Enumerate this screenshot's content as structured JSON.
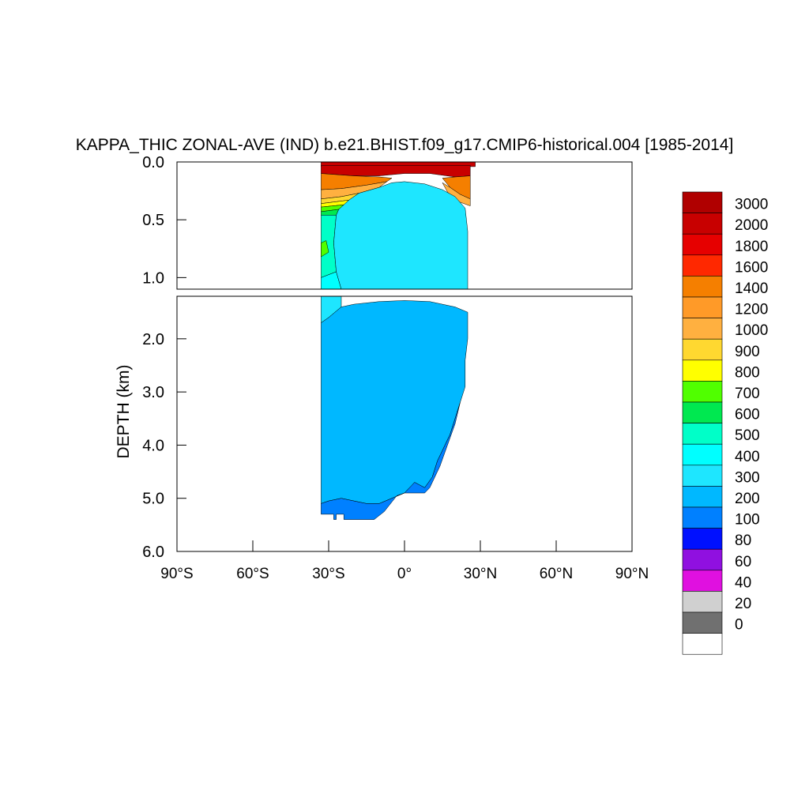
{
  "chart_data": {
    "type": "heatmap",
    "title": "KAPPA_THIC ZONAL-AVE (IND) b.e21.BHIST.f09_g17.CMIP6-historical.004 [1985-2014]",
    "ylabel": "DEPTH (km)",
    "xlabel": "",
    "x_ticks": [
      {
        "value": -90,
        "label": "90°S"
      },
      {
        "value": -60,
        "label": "60°S"
      },
      {
        "value": -30,
        "label": "30°S"
      },
      {
        "value": 0,
        "label": "0°"
      },
      {
        "value": 30,
        "label": "30°N"
      },
      {
        "value": 60,
        "label": "60°N"
      },
      {
        "value": 90,
        "label": "90°N"
      }
    ],
    "xlim": [
      -90,
      90
    ],
    "upper_panel": {
      "ylim": [
        0.0,
        1.1
      ],
      "y_ticks": [
        {
          "value": 0.0,
          "label": "0.0"
        },
        {
          "value": 0.5,
          "label": "0.5"
        },
        {
          "value": 1.0,
          "label": "1.0"
        }
      ]
    },
    "lower_panel": {
      "ylim": [
        1.2,
        6.0
      ],
      "y_ticks": [
        {
          "value": 2.0,
          "label": "2.0"
        },
        {
          "value": 3.0,
          "label": "3.0"
        },
        {
          "value": 4.0,
          "label": "4.0"
        },
        {
          "value": 5.0,
          "label": "5.0"
        },
        {
          "value": 6.0,
          "label": "6.0"
        }
      ]
    },
    "colorbar": {
      "levels": [
        "3000",
        "2000",
        "1800",
        "1600",
        "1400",
        "1200",
        "1000",
        "900",
        "800",
        "700",
        "600",
        "500",
        "400",
        "300",
        "200",
        "100",
        "80",
        "60",
        "40",
        "20",
        "0"
      ],
      "colors": [
        "#b00000",
        "#c80000",
        "#e60000",
        "#ff2800",
        "#f57f00",
        "#ff9a28",
        "#ffb040",
        "#ffd830",
        "#ffff00",
        "#50ff00",
        "#00e850",
        "#00ffc8",
        "#00ffff",
        "#1ee6ff",
        "#00b8ff",
        "#0080ff",
        "#0010ff",
        "#9010e0",
        "#e010e0",
        "#d0d0d0",
        "#707070",
        "#ffffff"
      ]
    },
    "domain": {
      "lat_min": -33,
      "lat_max": 26
    },
    "regions": [
      {
        "level": 3000,
        "color": "#c80000",
        "poly": [
          [
            -33,
            0
          ],
          [
            28,
            0
          ],
          [
            28,
            0.04
          ],
          [
            -33,
            0.04
          ]
        ]
      },
      {
        "level": 2000,
        "color": "#c80000",
        "poly": [
          [
            -33,
            0.03
          ],
          [
            26,
            0.03
          ],
          [
            26,
            0.12
          ],
          [
            20,
            0.13
          ],
          [
            10,
            0.1
          ],
          [
            0,
            0.1
          ],
          [
            -10,
            0.12
          ],
          [
            -20,
            0.12
          ],
          [
            -33,
            0.1
          ]
        ]
      },
      {
        "level": 1600,
        "color": "#f57f00",
        "poly": [
          [
            -33,
            0.1
          ],
          [
            -20,
            0.12
          ],
          [
            -10,
            0.13
          ],
          [
            -5,
            0.14
          ],
          [
            -7,
            0.17
          ],
          [
            -15,
            0.2
          ],
          [
            -25,
            0.23
          ],
          [
            -33,
            0.24
          ]
        ]
      },
      {
        "level": 1600,
        "color": "#f57f00",
        "poly": [
          [
            26,
            0.12
          ],
          [
            20,
            0.13
          ],
          [
            15,
            0.14
          ],
          [
            18,
            0.22
          ],
          [
            22,
            0.28
          ],
          [
            26,
            0.32
          ]
        ]
      },
      {
        "level": 1200,
        "color": "#ffb040",
        "poly": [
          [
            -33,
            0.24
          ],
          [
            -25,
            0.23
          ],
          [
            -15,
            0.2
          ],
          [
            -7,
            0.17
          ],
          [
            -10,
            0.22
          ],
          [
            -18,
            0.27
          ],
          [
            -25,
            0.3
          ],
          [
            -33,
            0.32
          ]
        ]
      },
      {
        "level": 1200,
        "color": "#ffb040",
        "poly": [
          [
            26,
            0.32
          ],
          [
            22,
            0.28
          ],
          [
            18,
            0.22
          ],
          [
            15,
            0.18
          ],
          [
            17,
            0.26
          ],
          [
            21,
            0.34
          ],
          [
            26,
            0.38
          ]
        ]
      },
      {
        "level": 1000,
        "color": "#ffd830",
        "poly": [
          [
            -33,
            0.32
          ],
          [
            -25,
            0.3
          ],
          [
            -18,
            0.27
          ],
          [
            -22,
            0.33
          ],
          [
            -33,
            0.36
          ]
        ]
      },
      {
        "level": 800,
        "color": "#ffff00",
        "poly": [
          [
            -33,
            0.36
          ],
          [
            -22,
            0.33
          ],
          [
            -24,
            0.37
          ],
          [
            -33,
            0.39
          ]
        ]
      },
      {
        "level": 700,
        "color": "#50ff00",
        "poly": [
          [
            -33,
            0.39
          ],
          [
            -24,
            0.37
          ],
          [
            -26,
            0.41
          ],
          [
            -33,
            0.43
          ]
        ]
      },
      {
        "level": 600,
        "color": "#00e850",
        "poly": [
          [
            -33,
            0.43
          ],
          [
            -26,
            0.41
          ],
          [
            -27,
            0.46
          ],
          [
            -33,
            0.46
          ]
        ]
      },
      {
        "level": 500,
        "color": "#00ffc8",
        "poly": [
          [
            -33,
            0.46
          ],
          [
            -27,
            0.46
          ],
          [
            -28,
            0.7
          ],
          [
            -27,
            0.95
          ],
          [
            -33,
            1.0
          ]
        ]
      },
      {
        "level": 400,
        "color": "#00ffff",
        "poly": [
          [
            -33,
            1.0
          ],
          [
            -27,
            0.95
          ],
          [
            -25,
            1.1
          ],
          [
            -33,
            1.1
          ]
        ]
      },
      {
        "level": 700,
        "color": "#50ff00",
        "poly": [
          [
            -33,
            0.7
          ],
          [
            -31,
            0.68
          ],
          [
            -30,
            0.78
          ],
          [
            -33,
            0.82
          ]
        ]
      },
      {
        "level": 300,
        "color": "#1ee6ff",
        "poly": [
          [
            -27,
            0.46
          ],
          [
            -26,
            0.41
          ],
          [
            -24,
            0.37
          ],
          [
            -22,
            0.33
          ],
          [
            -18,
            0.27
          ],
          [
            -10,
            0.22
          ],
          [
            -5,
            0.18
          ],
          [
            0,
            0.17
          ],
          [
            8,
            0.19
          ],
          [
            15,
            0.24
          ],
          [
            20,
            0.3
          ],
          [
            24,
            0.4
          ],
          [
            25,
            0.6
          ],
          [
            25,
            1.1
          ],
          [
            -25,
            1.1
          ],
          [
            -27,
            0.95
          ],
          [
            -28,
            0.7
          ]
        ]
      },
      {
        "level": 300,
        "color": "#1ee6ff",
        "poly": [
          [
            -33,
            1.2
          ],
          [
            -25,
            1.2
          ],
          [
            -25,
            1.4
          ],
          [
            -30,
            1.6
          ],
          [
            -33,
            1.7
          ]
        ]
      },
      {
        "level": 200,
        "color": "#00b8ff",
        "poly": [
          [
            -33,
            1.7
          ],
          [
            -30,
            1.6
          ],
          [
            -25,
            1.4
          ],
          [
            -20,
            1.35
          ],
          [
            -10,
            1.3
          ],
          [
            0,
            1.28
          ],
          [
            10,
            1.3
          ],
          [
            20,
            1.4
          ],
          [
            25,
            1.5
          ],
          [
            25,
            2.0
          ],
          [
            24,
            2.4
          ],
          [
            24,
            2.9
          ],
          [
            22,
            3.2
          ],
          [
            20,
            3.5
          ],
          [
            18,
            3.8
          ],
          [
            16,
            4.0
          ],
          [
            13,
            4.3
          ],
          [
            11,
            4.6
          ],
          [
            8,
            4.8
          ],
          [
            4,
            4.7
          ],
          [
            0,
            4.9
          ],
          [
            -5,
            5.0
          ],
          [
            -10,
            5.1
          ],
          [
            -15,
            5.1
          ],
          [
            -20,
            5.05
          ],
          [
            -25,
            5.0
          ],
          [
            -30,
            5.05
          ],
          [
            -33,
            5.1
          ]
        ]
      },
      {
        "level": 100,
        "color": "#0080ff",
        "poly": [
          [
            -33,
            5.1
          ],
          [
            -30,
            5.05
          ],
          [
            -25,
            5.0
          ],
          [
            -20,
            5.05
          ],
          [
            -15,
            5.1
          ],
          [
            -10,
            5.1
          ],
          [
            -5,
            5.0
          ],
          [
            0,
            4.9
          ],
          [
            4,
            4.7
          ],
          [
            8,
            4.8
          ],
          [
            11,
            4.6
          ],
          [
            13,
            4.3
          ],
          [
            16,
            4.0
          ],
          [
            18,
            3.8
          ],
          [
            20,
            3.5
          ],
          [
            22,
            3.2
          ],
          [
            20,
            3.6
          ],
          [
            17,
            4.0
          ],
          [
            14,
            4.4
          ],
          [
            10,
            4.8
          ],
          [
            8,
            4.9
          ],
          [
            0,
            4.9
          ],
          [
            -3,
            4.95
          ],
          [
            -8,
            5.25
          ],
          [
            -12,
            5.4
          ],
          [
            -24,
            5.4
          ],
          [
            -24,
            5.3
          ],
          [
            -27,
            5.3
          ],
          [
            -27,
            5.4
          ],
          [
            -28,
            5.4
          ],
          [
            -28,
            5.3
          ],
          [
            -33,
            5.3
          ]
        ]
      }
    ]
  }
}
